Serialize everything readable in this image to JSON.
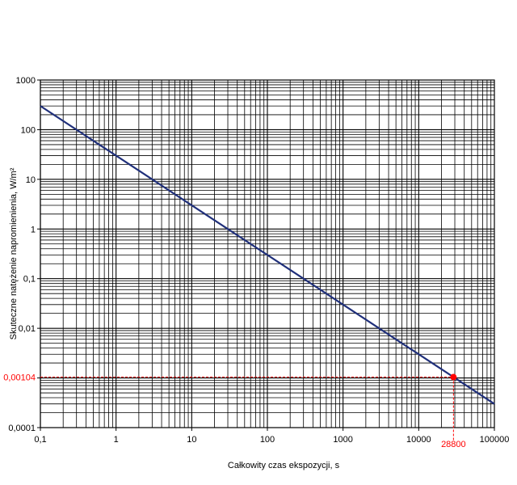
{
  "chart_data": {
    "type": "line",
    "x_scale": "log",
    "y_scale": "log",
    "xlabel": "Całkowity czas ekspozycji, s",
    "ylabel": "Skuteczne natężenie napromienienia, W/m²",
    "xlim": [
      0.1,
      100000
    ],
    "ylim": [
      0.0001,
      1000
    ],
    "grid": true,
    "x_ticks": [
      0.1,
      1,
      10,
      100,
      1000,
      10000,
      100000
    ],
    "x_tick_labels": [
      "0,1",
      "1",
      "10",
      "100",
      "1000",
      "10000",
      "100000"
    ],
    "y_ticks": [
      0.0001,
      0.001,
      0.01,
      0.1,
      1,
      10,
      100,
      1000
    ],
    "y_tick_labels": [
      "0,0001",
      "",
      "0,01",
      "0,1",
      "1",
      "10",
      "100",
      "1000"
    ],
    "series": [
      {
        "color": "#1f2f7a",
        "x": [
          0.1,
          100000
        ],
        "y": [
          300,
          0.0003
        ]
      }
    ],
    "highlight": {
      "color": "#ff0000",
      "x": 28800,
      "y": 0.00104,
      "x_label": "28800",
      "y_label": "0,00104"
    }
  }
}
